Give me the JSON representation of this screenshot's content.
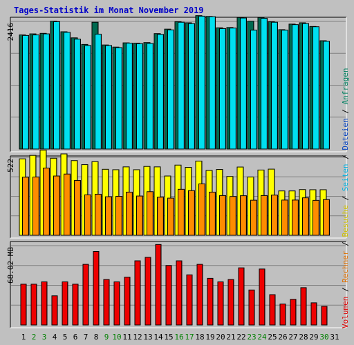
{
  "chart_data": {
    "type": "bar",
    "title": "Tages-Statistik im Monat November 2019",
    "days": [
      "1",
      "2",
      "3",
      "4",
      "5",
      "6",
      "7",
      "8",
      "9",
      "10",
      "11",
      "12",
      "13",
      "14",
      "15",
      "16",
      "17",
      "18",
      "19",
      "20",
      "21",
      "22",
      "23",
      "24",
      "25",
      "26",
      "27",
      "28",
      "29",
      "30",
      "31"
    ],
    "weekend_days": [
      "2",
      "3",
      "9",
      "10",
      "16",
      "17",
      "23",
      "24",
      "30"
    ],
    "right_legend": [
      {
        "label": "Volumen",
        "color": "#e00000"
      },
      {
        "label": "Rechner",
        "color": "#e07000"
      },
      {
        "label": "Besuche",
        "color": "#d0c000"
      },
      {
        "label": "Seiten",
        "color": "#00b0e0"
      },
      {
        "label": "Dateien",
        "color": "#0040c0"
      },
      {
        "label": "Anfragen",
        "color": "#008060"
      }
    ],
    "panels": [
      {
        "name": "top",
        "axis_label": "2416",
        "ymax": 2416,
        "series": [
          {
            "name": "Anfragen",
            "color": "#006a50",
            "values": [
              2160,
              2180,
              2190,
              2420,
              2220,
              2105,
              1980,
              2400,
              1970,
              1930,
              2010,
              2005,
              2015,
              2185,
              2270,
              2410,
              2390,
              2525,
              2510,
              2295,
              2300,
              2490,
              2420,
              2490,
              2410,
              2260,
              2365,
              2390,
              2320,
              2050,
              null
            ]
          },
          {
            "name": "Seiten",
            "color": "#00e0f0",
            "values": [
              2150,
              2160,
              2180,
              2410,
              2210,
              2080,
              1960,
              2175,
              1960,
              1920,
              2005,
              1995,
              2000,
              2170,
              2255,
              2400,
              2375,
              2515,
              2505,
              2280,
              2290,
              2480,
              2250,
              2475,
              2400,
              2250,
              2355,
              2375,
              2315,
              2040,
              null
            ]
          }
        ]
      },
      {
        "name": "middle",
        "axis_label": "522",
        "ymax": 522,
        "series": [
          {
            "name": "Besuche",
            "color": "#ffff00",
            "values": [
              512,
              535,
              570,
              516,
              545,
              500,
              473,
              493,
              442,
              439,
              458,
              439,
              461,
              458,
              397,
              470,
              455,
              497,
              434,
              441,
              394,
              457,
              390,
              437,
              443,
              297,
              297,
              306,
              305,
              305,
              null
            ]
          },
          {
            "name": "Rechner",
            "color": "#ff8c00",
            "values": [
              389,
              390,
              450,
              397,
              410,
              367,
              271,
              275,
              258,
              261,
              289,
              263,
              292,
              255,
              249,
              308,
              299,
              344,
              289,
              266,
              260,
              265,
              235,
              266,
              269,
              236,
              236,
              251,
              234,
              239,
              null
            ]
          }
        ]
      },
      {
        "name": "bottom",
        "axis_label": "68.02 MB",
        "ymax": 68.02,
        "series": [
          {
            "name": "Volumen",
            "color": "#ee0000",
            "values": [
              35,
              35,
              37,
              25,
              37,
              35,
              52,
              63,
              39,
              37,
              41,
              55,
              58,
              69,
              51,
              55,
              43,
              52,
              40,
              37,
              39,
              49,
              30,
              48,
              26,
              18,
              22,
              32,
              19,
              16,
              null
            ]
          }
        ]
      }
    ]
  }
}
